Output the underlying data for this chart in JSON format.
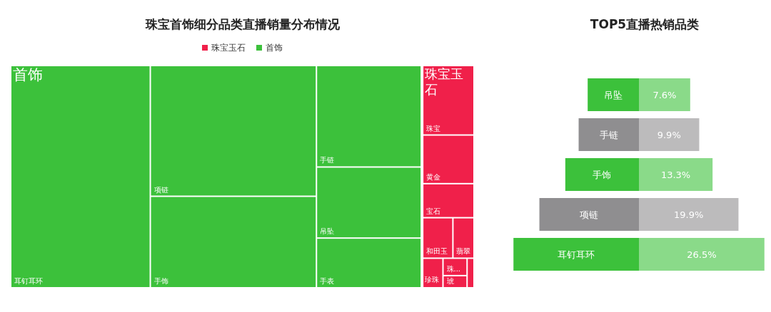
{
  "chart_data": [
    {
      "type": "other",
      "title": "珠宝首饰细分品类直播销量分布情况",
      "legend": "top",
      "categories": [
        "耳钉耳环",
        "项链",
        "手饰",
        "手链",
        "吊坠",
        "手表",
        "珠宝",
        "黄金",
        "宝石",
        "和田玉",
        "翡翠",
        "珍珠",
        "珠...",
        "琥",
        null
      ],
      "colors": [
        "#3cc13b",
        "#3cc13b",
        "#3cc13b",
        "#3cc13b",
        "#3cc13b",
        "#3cc13b",
        "#f0204a",
        "#f0204a",
        "#f0204a",
        "#f0204a",
        "#f0204a",
        "#f0204a",
        "#f0204a",
        "#f0204a",
        "#f0204a"
      ],
      "series": [
        {
          "name": "首饰",
          "color": "#3cc13b",
          "values": [
            null,
            null,
            null,
            null,
            null,
            null,
            null,
            null,
            null,
            null,
            null,
            null,
            null,
            null,
            null
          ]
        },
        {
          "name": "珠宝玉石",
          "color": "#f0204a",
          "values": [
            null,
            null,
            null,
            null,
            null,
            null,
            null,
            null,
            null,
            null,
            null,
            null,
            null,
            null,
            null
          ]
        }
      ]
    },
    {
      "type": "other",
      "title": "TOP5直播热销品类",
      "categories": [
        "吊坠",
        "手链",
        "手饰",
        "项链",
        "耳钉耳环"
      ],
      "values": [
        7.6,
        9.9,
        13.3,
        19.9,
        26.5
      ],
      "value_labels": [
        "7.6%",
        "9.9%",
        "13.3%",
        "19.9%",
        "26.5%"
      ],
      "colors": [
        "#3cc13b",
        "#8f8e90",
        "#3cc13b",
        "#8f8e90",
        "#3cc13b"
      ]
    }
  ]
}
